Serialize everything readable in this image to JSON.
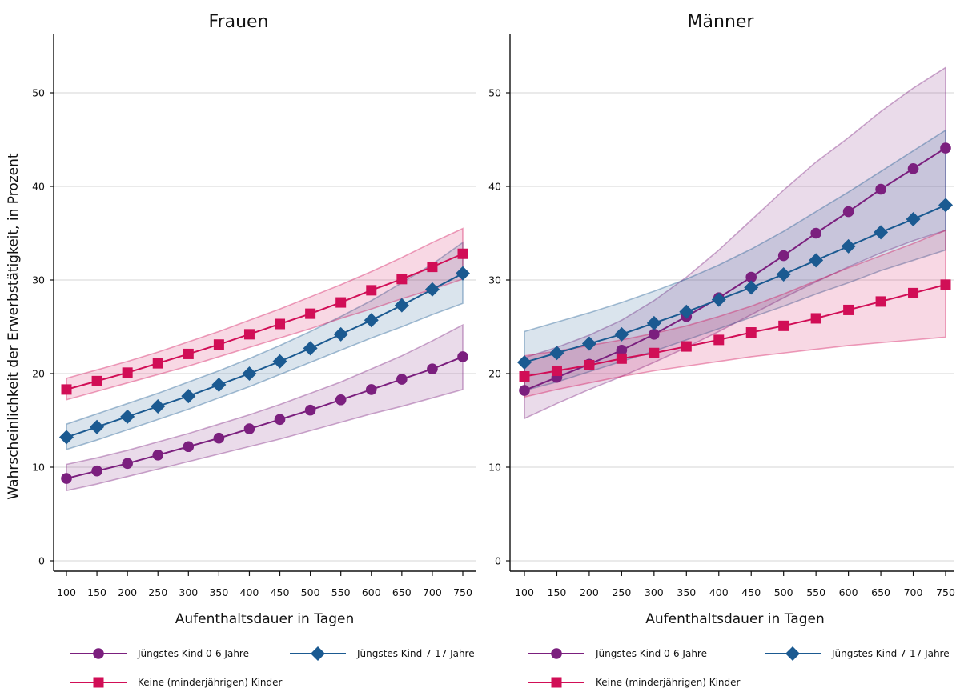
{
  "figure": {
    "ylabel": "Wahrscheinlichkeit der Erwerbstätigkeit, in Prozent"
  },
  "colors": {
    "purple": "#7b1f7e",
    "blue": "#1b5a91",
    "red": "#d10e56",
    "grid": "#e3e3e3"
  },
  "chart_data": [
    {
      "type": "line",
      "title": "Frauen",
      "xlabel": "Aufenthaltsdauer in Tagen",
      "ylabel": "Wahrscheinlichkeit der Erwerbstätigkeit, in Prozent",
      "x": [
        100,
        150,
        200,
        250,
        300,
        350,
        400,
        450,
        500,
        550,
        600,
        650,
        700,
        750
      ],
      "xlim": [
        100,
        750
      ],
      "ylim": [
        0,
        55
      ],
      "yticks": [
        0,
        10,
        20,
        30,
        40,
        50
      ],
      "grid": "horizontal",
      "legend_position": "bottom",
      "series": [
        {
          "name": "Jüngstes Kind 0-6 Jahre",
          "marker": "circle",
          "color": "#7b1f7e",
          "values": [
            8.8,
            9.6,
            10.4,
            11.3,
            12.2,
            13.1,
            14.1,
            15.1,
            16.1,
            17.2,
            18.3,
            19.4,
            20.5,
            21.8
          ],
          "ci_lower": [
            7.5,
            8.2,
            9.0,
            9.8,
            10.6,
            11.4,
            12.2,
            13.0,
            13.9,
            14.8,
            15.7,
            16.5,
            17.4,
            18.3
          ],
          "ci_upper": [
            10.3,
            11.0,
            11.8,
            12.7,
            13.6,
            14.6,
            15.6,
            16.7,
            17.9,
            19.1,
            20.5,
            21.9,
            23.5,
            25.2
          ]
        },
        {
          "name": "Jüngstes Kind 7-17 Jahre",
          "marker": "diamond",
          "color": "#1b5a91",
          "values": [
            13.2,
            14.3,
            15.4,
            16.5,
            17.6,
            18.8,
            20.0,
            21.3,
            22.7,
            24.2,
            25.7,
            27.3,
            29.0,
            30.7
          ],
          "ci_lower": [
            11.9,
            12.9,
            14.0,
            15.1,
            16.2,
            17.4,
            18.6,
            19.9,
            21.2,
            22.5,
            23.8,
            25.0,
            26.3,
            27.5
          ],
          "ci_upper": [
            14.6,
            15.7,
            16.8,
            17.9,
            19.1,
            20.3,
            21.6,
            23.0,
            24.5,
            26.1,
            27.8,
            29.7,
            31.7,
            34.0
          ]
        },
        {
          "name": "Keine (minderjährigen) Kinder",
          "marker": "square",
          "color": "#d10e56",
          "values": [
            18.3,
            19.2,
            20.1,
            21.1,
            22.1,
            23.1,
            24.2,
            25.3,
            26.4,
            27.6,
            28.9,
            30.1,
            31.4,
            32.8
          ],
          "ci_lower": [
            17.2,
            18.1,
            19.0,
            19.9,
            20.8,
            21.8,
            22.8,
            23.8,
            24.8,
            25.9,
            26.9,
            28.0,
            29.0,
            30.1
          ],
          "ci_upper": [
            19.5,
            20.4,
            21.3,
            22.3,
            23.4,
            24.5,
            25.7,
            26.9,
            28.2,
            29.5,
            30.9,
            32.4,
            34.0,
            35.5
          ]
        }
      ]
    },
    {
      "type": "line",
      "title": "Männer",
      "xlabel": "Aufenthaltsdauer in Tagen",
      "ylabel": "",
      "x": [
        100,
        150,
        200,
        250,
        300,
        350,
        400,
        450,
        500,
        550,
        600,
        650,
        700,
        750
      ],
      "xlim": [
        100,
        750
      ],
      "ylim": [
        0,
        55
      ],
      "yticks": [
        0,
        10,
        20,
        30,
        40,
        50
      ],
      "grid": "horizontal",
      "legend_position": "bottom",
      "series": [
        {
          "name": "Jüngstes Kind 0-6 Jahre",
          "marker": "circle",
          "color": "#7b1f7e",
          "values": [
            18.2,
            19.6,
            21.0,
            22.5,
            24.2,
            26.1,
            28.1,
            30.3,
            32.6,
            35.0,
            37.3,
            39.7,
            41.9,
            44.1
          ],
          "ci_lower": [
            15.2,
            16.8,
            18.3,
            19.7,
            21.2,
            22.8,
            24.5,
            26.3,
            28.1,
            29.8,
            31.4,
            32.9,
            34.2,
            35.3
          ],
          "ci_upper": [
            21.7,
            22.8,
            24.1,
            25.7,
            27.8,
            30.3,
            33.2,
            36.4,
            39.6,
            42.6,
            45.2,
            48.0,
            50.5,
            52.7
          ]
        },
        {
          "name": "Jüngstes Kind 7-17 Jahre",
          "marker": "diamond",
          "color": "#1b5a91",
          "values": [
            21.2,
            22.2,
            23.2,
            24.2,
            25.4,
            26.6,
            27.9,
            29.2,
            30.6,
            32.1,
            33.6,
            35.1,
            36.5,
            38.0
          ],
          "ci_lower": [
            18.2,
            19.1,
            20.2,
            21.3,
            22.4,
            23.6,
            24.8,
            26.0,
            27.2,
            28.5,
            29.7,
            31.0,
            32.1,
            33.2
          ],
          "ci_upper": [
            24.5,
            25.5,
            26.5,
            27.6,
            28.8,
            30.1,
            31.6,
            33.3,
            35.2,
            37.3,
            39.4,
            41.6,
            43.8,
            46.0
          ]
        },
        {
          "name": "Keine (minderjährigen) Kinder",
          "marker": "square",
          "color": "#d10e56",
          "values": [
            19.7,
            20.3,
            20.9,
            21.6,
            22.2,
            22.9,
            23.6,
            24.4,
            25.1,
            25.9,
            26.8,
            27.7,
            28.6,
            29.5
          ],
          "ci_lower": [
            17.5,
            18.3,
            19.0,
            19.7,
            20.3,
            20.8,
            21.3,
            21.8,
            22.2,
            22.6,
            23.0,
            23.3,
            23.6,
            23.9
          ],
          "ci_upper": [
            21.9,
            22.4,
            23.0,
            23.6,
            24.3,
            25.1,
            26.1,
            27.2,
            28.5,
            29.9,
            31.3,
            32.6,
            33.9,
            35.3
          ]
        }
      ]
    }
  ]
}
